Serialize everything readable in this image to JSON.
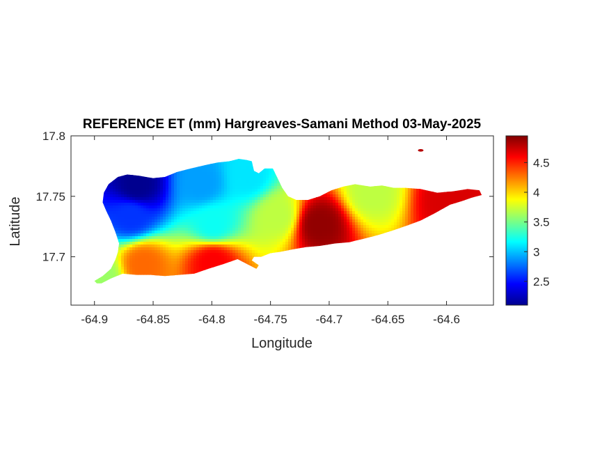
{
  "chart_data": {
    "type": "heatmap",
    "title": "REFERENCE ET (mm) Hargreaves-Samani Method  03-May-2025",
    "xlabel": "Longitude",
    "ylabel": "Latitude",
    "xlim": [
      -64.92,
      -64.56
    ],
    "ylim": [
      17.66,
      17.8
    ],
    "xticks": [
      -64.9,
      -64.85,
      -64.8,
      -64.75,
      -64.7,
      -64.65,
      -64.6
    ],
    "xtick_labels": [
      "-64.9",
      "-64.85",
      "-64.8",
      "-64.75",
      "-64.7",
      "-64.65",
      "-64.6"
    ],
    "yticks": [
      17.7,
      17.75,
      17.8
    ],
    "ytick_labels": [
      "17.7",
      "17.75",
      "17.8"
    ],
    "colormap": "jet",
    "colorbar": {
      "min": 2.1,
      "max": 4.95,
      "ticks": [
        2.5,
        3,
        3.5,
        4,
        4.5
      ],
      "tick_labels": [
        "2.5",
        "3",
        "3.5",
        "4",
        "4.5"
      ],
      "position": "right"
    },
    "grid": false,
    "island_outline": [
      [
        -64.9,
        17.68
      ],
      [
        -64.893,
        17.684
      ],
      [
        -64.886,
        17.69
      ],
      [
        -64.882,
        17.698
      ],
      [
        -64.88,
        17.704
      ],
      [
        -64.879,
        17.711
      ],
      [
        -64.882,
        17.72
      ],
      [
        -64.886,
        17.73
      ],
      [
        -64.89,
        17.738
      ],
      [
        -64.893,
        17.745
      ],
      [
        -64.892,
        17.753
      ],
      [
        -64.888,
        17.76
      ],
      [
        -64.88,
        17.766
      ],
      [
        -64.872,
        17.768
      ],
      [
        -64.862,
        17.767
      ],
      [
        -64.85,
        17.765
      ],
      [
        -64.84,
        17.766
      ],
      [
        -64.83,
        17.77
      ],
      [
        -64.818,
        17.773
      ],
      [
        -64.805,
        17.776
      ],
      [
        -64.795,
        17.778
      ],
      [
        -64.785,
        17.779
      ],
      [
        -64.777,
        17.781
      ],
      [
        -64.77,
        17.78
      ],
      [
        -64.766,
        17.779
      ],
      [
        -64.764,
        17.771
      ],
      [
        -64.76,
        17.769
      ],
      [
        -64.755,
        17.773
      ],
      [
        -64.748,
        17.773
      ],
      [
        -64.744,
        17.765
      ],
      [
        -64.74,
        17.757
      ],
      [
        -64.735,
        17.75
      ],
      [
        -64.728,
        17.747
      ],
      [
        -64.718,
        17.747
      ],
      [
        -64.708,
        17.75
      ],
      [
        -64.698,
        17.755
      ],
      [
        -64.688,
        17.758
      ],
      [
        -64.678,
        17.76
      ],
      [
        -64.665,
        17.758
      ],
      [
        -64.655,
        17.759
      ],
      [
        -64.645,
        17.757
      ],
      [
        -64.635,
        17.757
      ],
      [
        -64.622,
        17.756
      ],
      [
        -64.608,
        17.753
      ],
      [
        -64.595,
        17.754
      ],
      [
        -64.582,
        17.756
      ],
      [
        -64.572,
        17.755
      ],
      [
        -64.57,
        17.751
      ],
      [
        -64.578,
        17.749
      ],
      [
        -64.587,
        17.746
      ],
      [
        -64.597,
        17.743
      ],
      [
        -64.61,
        17.736
      ],
      [
        -64.622,
        17.73
      ],
      [
        -64.633,
        17.726
      ],
      [
        -64.645,
        17.722
      ],
      [
        -64.658,
        17.718
      ],
      [
        -64.67,
        17.715
      ],
      [
        -64.683,
        17.712
      ],
      [
        -64.695,
        17.711
      ],
      [
        -64.708,
        17.709
      ],
      [
        -64.72,
        17.708
      ],
      [
        -64.732,
        17.706
      ],
      [
        -64.742,
        17.704
      ],
      [
        -64.75,
        17.703
      ],
      [
        -64.758,
        17.7
      ],
      [
        -64.764,
        17.7
      ],
      [
        -64.766,
        17.697
      ],
      [
        -64.76,
        17.693
      ],
      [
        -64.762,
        17.69
      ],
      [
        -64.77,
        17.694
      ],
      [
        -64.778,
        17.698
      ],
      [
        -64.79,
        17.694
      ],
      [
        -64.803,
        17.69
      ],
      [
        -64.815,
        17.686
      ],
      [
        -64.828,
        17.685
      ],
      [
        -64.84,
        17.684
      ],
      [
        -64.852,
        17.685
      ],
      [
        -64.864,
        17.685
      ],
      [
        -64.876,
        17.686
      ],
      [
        -64.886,
        17.682
      ],
      [
        -64.894,
        17.678
      ],
      [
        -64.898,
        17.678
      ]
    ],
    "outlier_islet": {
      "center": [
        -64.622,
        17.788
      ],
      "value": 4.8
    },
    "approximate_field": [
      {
        "region": "northwest",
        "lon": -64.865,
        "lat": 17.76,
        "value": 2.1
      },
      {
        "region": "west-central",
        "lon": -64.87,
        "lat": 17.735,
        "value": 2.6
      },
      {
        "region": "north-central",
        "lon": -64.81,
        "lat": 17.762,
        "value": 2.9
      },
      {
        "region": "north hills",
        "lon": -64.77,
        "lat": 17.768,
        "value": 3.1
      },
      {
        "region": "central",
        "lon": -64.8,
        "lat": 17.728,
        "value": 3.2
      },
      {
        "region": "east-center",
        "lon": -64.745,
        "lat": 17.735,
        "value": 3.7
      },
      {
        "region": "southwest coast",
        "lon": -64.86,
        "lat": 17.695,
        "value": 4.3
      },
      {
        "region": "south-central coast",
        "lon": -64.8,
        "lat": 17.697,
        "value": 4.6
      },
      {
        "region": "southeast",
        "lon": -64.71,
        "lat": 17.728,
        "value": 4.9
      },
      {
        "region": "east end",
        "lon": -64.6,
        "lat": 17.748,
        "value": 4.7
      },
      {
        "region": "northeast rim",
        "lon": -64.665,
        "lat": 17.755,
        "value": 3.7
      },
      {
        "region": "west tip",
        "lon": -64.895,
        "lat": 17.685,
        "value": 3.6
      }
    ]
  }
}
